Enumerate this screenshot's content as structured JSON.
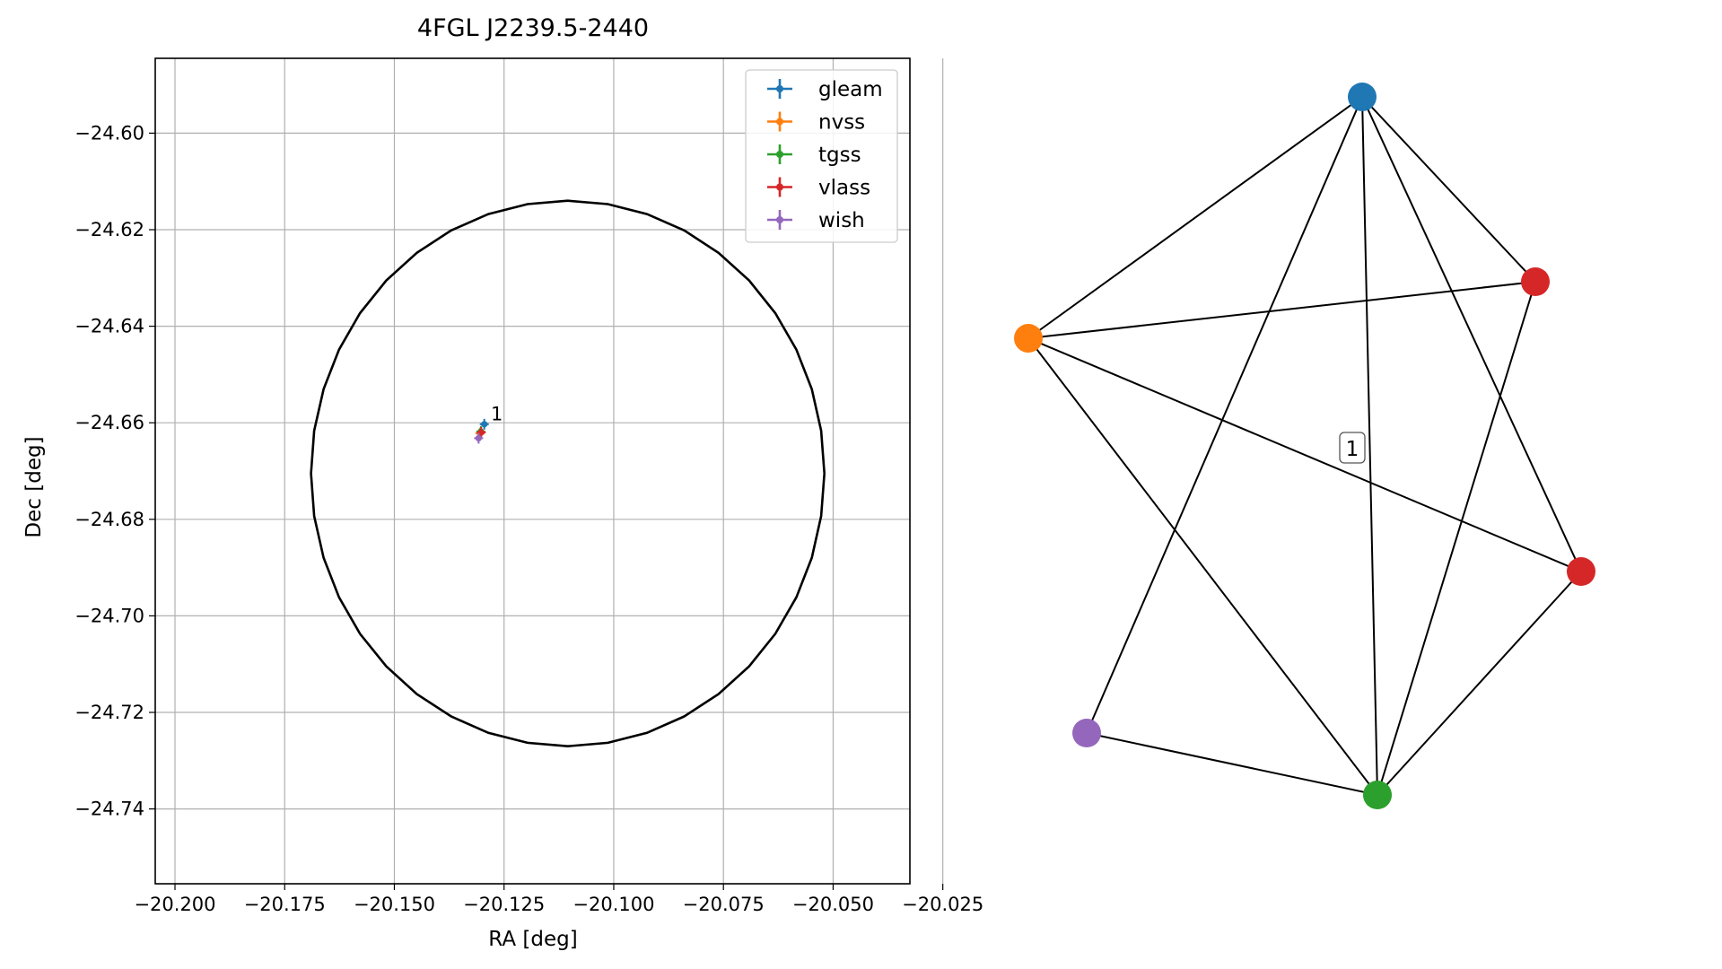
{
  "chart_data": [
    {
      "type": "scatter",
      "title": "4FGL J2239.5-2440",
      "xlabel": "RA [deg]",
      "ylabel": "Dec [deg]",
      "xlim": [
        -20.2045,
        -20.0325
      ],
      "ylim": [
        -24.7555,
        -24.5845
      ],
      "xticks": [
        -20.2,
        -20.175,
        -20.15,
        -20.125,
        -20.1,
        -20.075,
        -20.05,
        -20.025
      ],
      "xtick_labels": [
        "−20.200",
        "−20.175",
        "−20.150",
        "−20.125",
        "−20.100",
        "−20.075",
        "−20.050",
        "−20.025"
      ],
      "yticks": [
        -24.6,
        -24.62,
        -24.64,
        -24.66,
        -24.68,
        -24.7,
        -24.72,
        -24.74
      ],
      "ytick_labels": [
        "−24.60",
        "−24.62",
        "−24.64",
        "−24.66",
        "−24.68",
        "−24.70",
        "−24.72",
        "−24.74"
      ],
      "grid": true,
      "legend_position": "upper right",
      "ellipse": {
        "center": [
          -20.1105,
          -24.6705
        ],
        "radius_x": 0.0585,
        "radius_y": 0.0565,
        "color": "#000000"
      },
      "series": [
        {
          "name": "gleam",
          "color": "#1f77b4",
          "x": [
            -20.1295
          ],
          "y": [
            -24.6603
          ]
        },
        {
          "name": "nvss",
          "color": "#ff7f0e",
          "x": [
            -20.1305
          ],
          "y": [
            -24.6622
          ]
        },
        {
          "name": "tgss",
          "color": "#2ca02c",
          "x": [
            -20.1303
          ],
          "y": [
            -24.6618
          ]
        },
        {
          "name": "vlass",
          "color": "#d62728",
          "x": [
            -20.1302
          ],
          "y": [
            -24.662
          ]
        },
        {
          "name": "wish",
          "color": "#9467bd",
          "x": [
            -20.1308
          ],
          "y": [
            -24.6632
          ]
        }
      ],
      "annotations": [
        {
          "text": "1",
          "x": -20.128,
          "y": -24.6595
        }
      ]
    },
    {
      "type": "network",
      "edge_label": "1",
      "nodes": [
        {
          "id": "blue",
          "color": "#1f77b4"
        },
        {
          "id": "red1",
          "color": "#d62728"
        },
        {
          "id": "orange",
          "color": "#ff7f0e"
        },
        {
          "id": "red2",
          "color": "#d62728"
        },
        {
          "id": "purple",
          "color": "#9467bd"
        },
        {
          "id": "green",
          "color": "#2ca02c"
        }
      ],
      "edges": [
        [
          "blue",
          "orange"
        ],
        [
          "blue",
          "purple"
        ],
        [
          "blue",
          "green"
        ],
        [
          "blue",
          "red1"
        ],
        [
          "blue",
          "red2"
        ],
        [
          "orange",
          "red1"
        ],
        [
          "orange",
          "red2"
        ],
        [
          "orange",
          "green"
        ],
        [
          "red1",
          "green"
        ],
        [
          "red2",
          "green"
        ],
        [
          "purple",
          "green"
        ]
      ]
    }
  ]
}
